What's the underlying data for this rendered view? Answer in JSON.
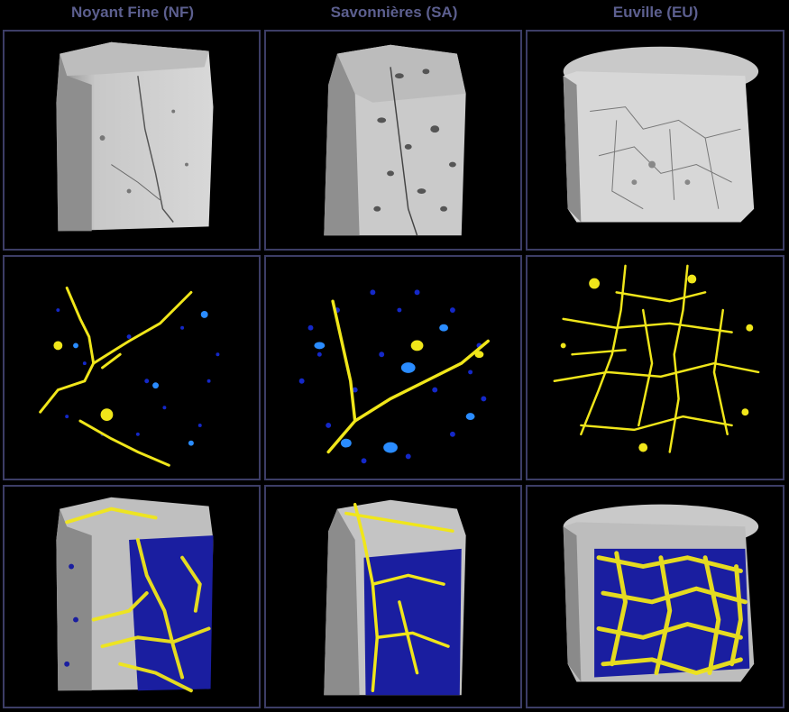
{
  "columns": [
    {
      "title": "Noyant Fine (NF)"
    },
    {
      "title": "Savonnières (SA)"
    },
    {
      "title": "Euville (EU)"
    }
  ],
  "rows": [
    "3d-grayscale-volume",
    "2d-pore-slice",
    "3d-pore-overlay"
  ],
  "colors": {
    "background": "#000000",
    "border": "#3c3d66",
    "title": "#5c5f8f",
    "stone": "#cfcfcf",
    "connected_pores": "#f0e61a",
    "isolated_pores_dark": "#1428c8",
    "isolated_pores_light": "#2a8cff"
  }
}
